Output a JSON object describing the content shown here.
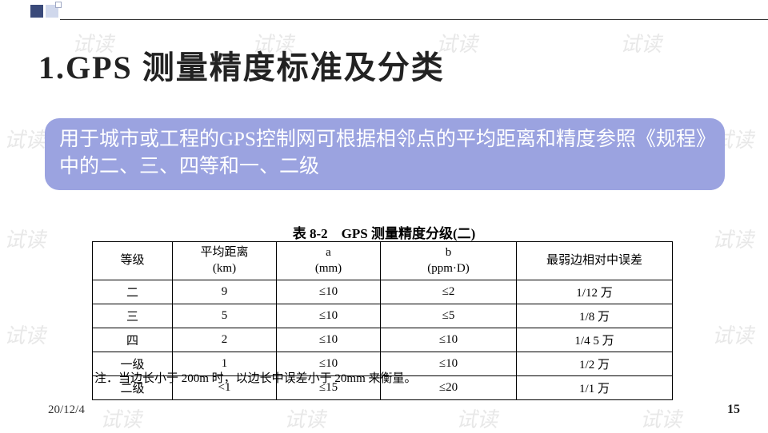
{
  "title": "1.GPS 测量精度标准及分类",
  "description": "用于城市或工程的GPS控制网可根据相邻点的平均距离和精度参照《规程》中的二、三、四等和一、二级",
  "table": {
    "caption": "表 8-2　GPS 测量精度分级(二)",
    "columns": [
      "等级",
      "平均距离\n(km)",
      "a\n(mm)",
      "b\n(ppm·D)",
      "最弱边相对中误差"
    ],
    "rows": [
      [
        "二",
        "9",
        "≤10",
        "≤2",
        "1/12 万"
      ],
      [
        "三",
        "5",
        "≤10",
        "≤5",
        "1/8 万"
      ],
      [
        "四",
        "2",
        "≤10",
        "≤10",
        "1/4 5 万"
      ],
      [
        "一级",
        "1",
        "≤10",
        "≤10",
        "1/2 万"
      ],
      [
        "二级",
        "<1",
        "≤15",
        "≤20",
        "1/1 万"
      ]
    ],
    "note": "注．当边长小于 200m 时，以边长中误差小于 20mm 来衡量。"
  },
  "footer": {
    "date": "20/12/4",
    "page": "15"
  },
  "watermark_text": "试读",
  "colors": {
    "box_bg": "#9ba3e0",
    "box_text": "#ffffff",
    "deco_dark": "#3a4a7a",
    "deco_light": "#d0d8ec"
  }
}
